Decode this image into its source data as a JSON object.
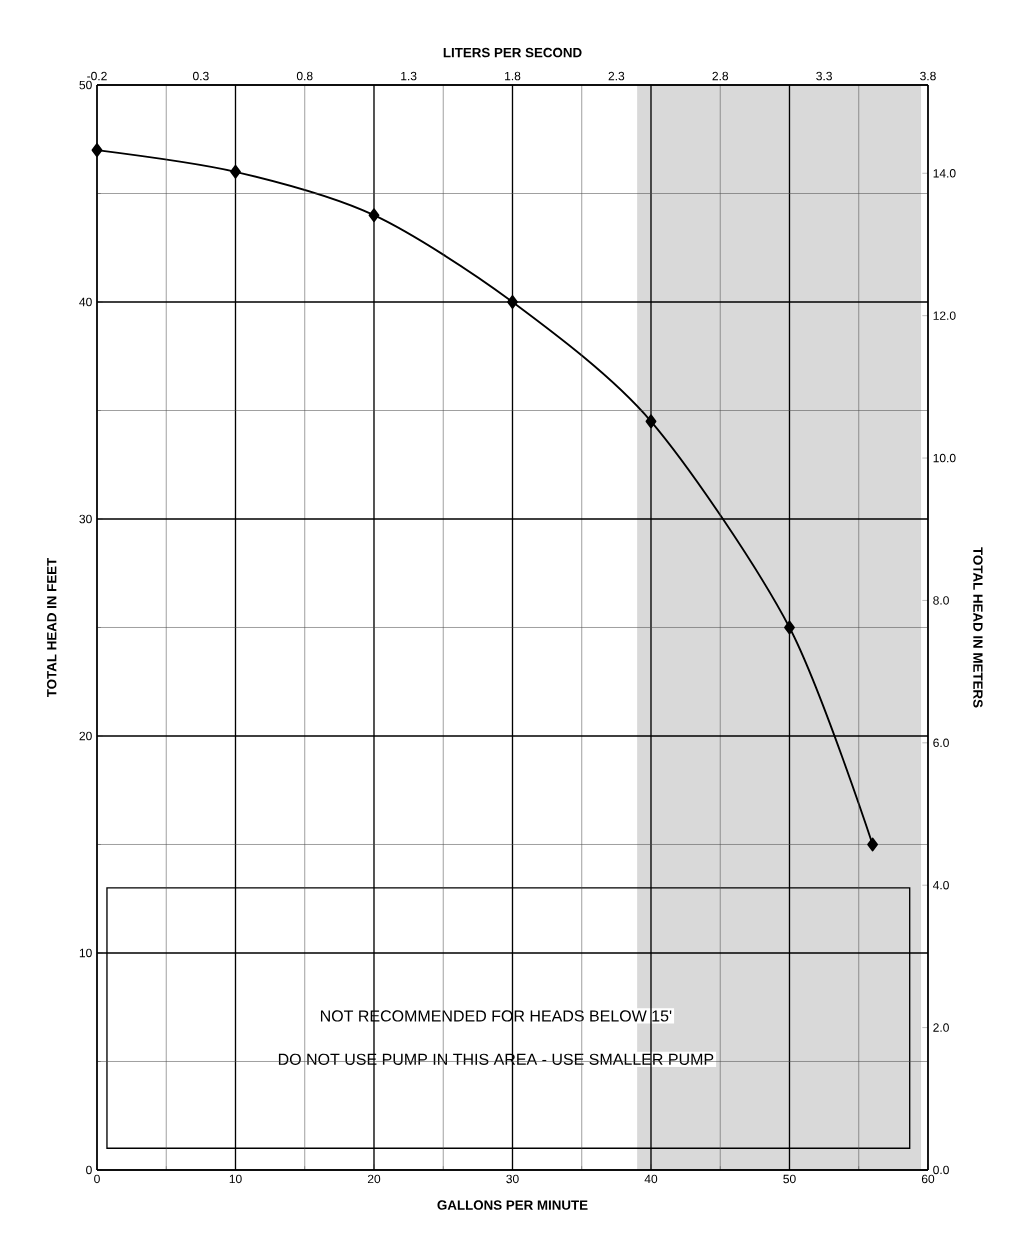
{
  "chart_data": {
    "type": "line",
    "xlabel": "GALLONS PER MINUTE",
    "ylabel": "TOTAL HEAD IN FEET",
    "y2label": "TOTAL HEAD IN METERS",
    "x2label": "LITERS PER SECOND",
    "x": [
      0,
      10,
      20,
      30,
      40,
      50,
      56
    ],
    "series": [
      {
        "color": "#000000",
        "values": [
          47,
          46,
          44,
          40,
          34.5,
          25,
          15
        ]
      }
    ],
    "xlim": [
      0,
      60
    ],
    "xticks": [
      0,
      10,
      20,
      30,
      40,
      50,
      60
    ],
    "ylim": [
      0,
      50
    ],
    "yticks": [
      0,
      10,
      20,
      30,
      40,
      50
    ],
    "y2lim": [
      0,
      15.24
    ],
    "y2ticks": [
      {
        "value": 0,
        "label": "0.0"
      },
      {
        "value": 2,
        "label": "2.0"
      },
      {
        "value": 4,
        "label": "4.0"
      },
      {
        "value": 6,
        "label": "6.0"
      },
      {
        "value": 8,
        "label": "8.0"
      },
      {
        "value": 10,
        "label": "10.0"
      },
      {
        "value": 12,
        "label": "12.0"
      },
      {
        "value": 14,
        "label": "14.0"
      }
    ],
    "x2lim": [
      -0.2,
      3.8
    ],
    "x2ticks": [
      -0.2,
      0.3,
      0.8,
      1.3,
      1.8,
      2.3,
      2.8,
      3.3,
      3.8
    ],
    "bands": [
      {
        "axis": "x",
        "from": 39,
        "to": 59.5,
        "color": "#d9d9d9"
      }
    ],
    "annotations": [
      "NOT RECOMMENDED FOR HEADS BELOW 15'",
      "DO NOT USE PUMP IN THIS AREA - USE SMALLER PUMP"
    ],
    "grid": true,
    "marker": "diamond",
    "line_style": "solid"
  }
}
